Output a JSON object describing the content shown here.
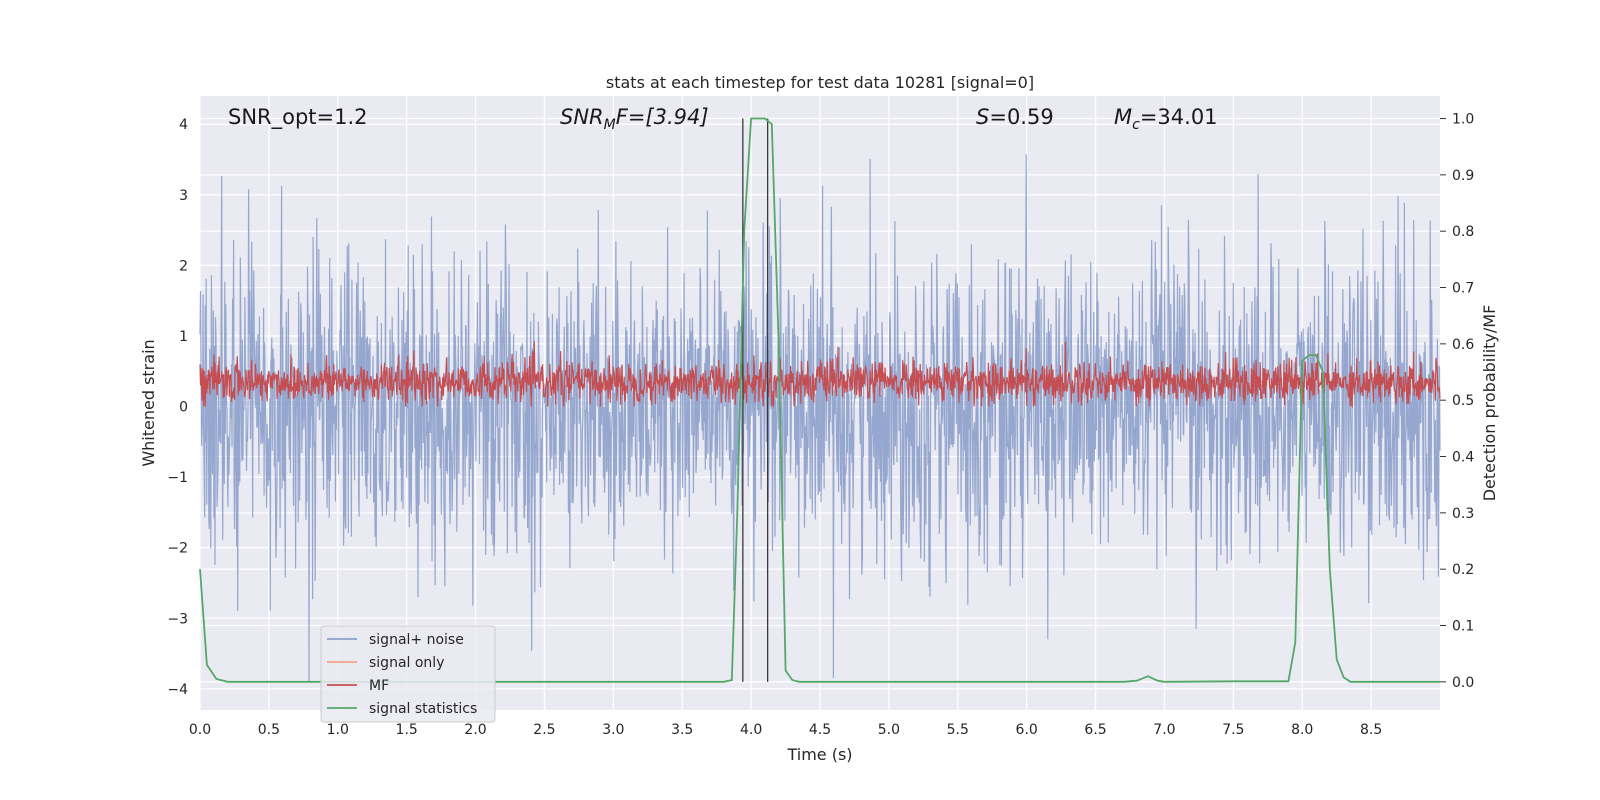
{
  "chart_data": {
    "type": "line",
    "title": "stats at each timestep for test data 10281 [signal=0]",
    "xlabel": "Time (s)",
    "ylabel": "Whitened strain",
    "ylabel_right": "Detection probability/MF",
    "xlim": [
      0.0,
      9.0
    ],
    "ylim": [
      -4.3,
      4.4
    ],
    "ylim_right": [
      -0.05,
      1.04
    ],
    "x_ticks": [
      "0.0",
      "0.5",
      "1.0",
      "1.5",
      "2.0",
      "2.5",
      "3.0",
      "3.5",
      "4.0",
      "4.5",
      "5.0",
      "5.5",
      "6.0",
      "6.5",
      "7.0",
      "7.5",
      "8.0",
      "8.5"
    ],
    "y_ticks": [
      "4",
      "3",
      "2",
      "1",
      "0",
      "−1",
      "−2",
      "−3",
      "−4"
    ],
    "y_ticks_right": [
      "1.0",
      "0.9",
      "0.8",
      "0.7",
      "0.6",
      "0.5",
      "0.4",
      "0.3",
      "0.2",
      "0.1",
      "0.0"
    ],
    "grid": true,
    "legend_position": "lower-left",
    "annotations": [
      {
        "label": "SNR_opt=1.2"
      },
      {
        "label": "SNR",
        "sub": "M",
        "suffix": "F=[3.94]"
      },
      {
        "label": "S",
        "suffix": "=0.59"
      },
      {
        "label": "M",
        "sub": "c",
        "suffix": "=34.01"
      }
    ],
    "series": [
      {
        "name": "signal+ noise",
        "color": "#8da0cb",
        "description_stat": "noise amplitude ~1 sigma, range -3.9 to 4.0"
      },
      {
        "name": "signal only",
        "color": "#f4a582"
      },
      {
        "name": "MF",
        "color": "#c44e52",
        "range": [
          0.0,
          0.95
        ]
      },
      {
        "name": "signal statistics",
        "color": "#55a868",
        "x": [
          0.0,
          0.05,
          0.12,
          0.2,
          0.5,
          1.0,
          2.0,
          3.0,
          3.8,
          3.86,
          3.9,
          3.95,
          4.0,
          4.1,
          4.15,
          4.2,
          4.25,
          4.3,
          4.35,
          4.5,
          5.0,
          6.0,
          6.7,
          6.8,
          6.88,
          6.95,
          7.0,
          7.5,
          7.9,
          7.95,
          8.0,
          8.05,
          8.1,
          8.15,
          8.2,
          8.25,
          8.3,
          8.35,
          8.5,
          9.0
        ],
        "y": [
          0.2,
          0.03,
          0.005,
          0.0,
          0.0,
          0.0,
          0.0,
          0.0,
          0.0,
          0.003,
          0.3,
          0.8,
          1.0,
          1.0,
          0.99,
          0.6,
          0.02,
          0.003,
          0.0,
          0.0,
          0.0,
          0.0,
          0.0,
          0.002,
          0.01,
          0.002,
          0.0,
          0.001,
          0.001,
          0.07,
          0.57,
          0.58,
          0.58,
          0.55,
          0.2,
          0.04,
          0.008,
          0.0,
          0.0,
          0.0
        ]
      }
    ],
    "vlines": [
      3.94,
      4.12
    ]
  }
}
